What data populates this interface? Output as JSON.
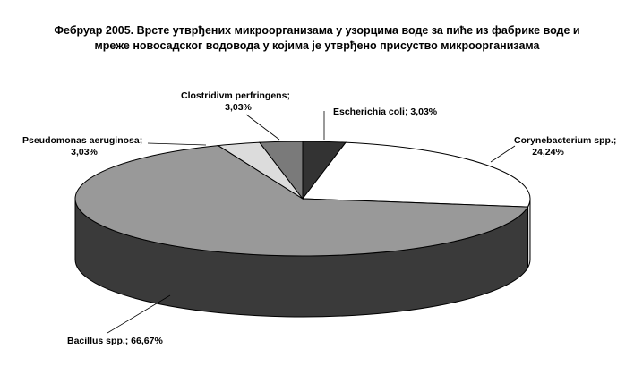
{
  "chart_data": {
    "type": "pie",
    "title": "Фебруар 2005. Врсте утврђених микроорганизама у узорцима воде за пиће из фабрике воде и мреже новосадског водовода у којима је утврђено присуство микроорганизама",
    "slices": [
      {
        "label": "Escherichia coli",
        "value": 3.03,
        "display": "Escherichia coli; 3,03%",
        "color": "#333333",
        "side": "#1f1f1f"
      },
      {
        "label": "Corynebacterium spp.",
        "value": 24.24,
        "display_line1": "Corynebacterium spp.;",
        "display_line2": "24,24%",
        "color": "#ffffff",
        "side": "#d9d9d9"
      },
      {
        "label": "Bacillus spp.",
        "value": 66.67,
        "display": "Bacillus spp.; 66,67%",
        "color": "#999999",
        "side": "#3a3a3a"
      },
      {
        "label": "Pseudomonas aeruginosa",
        "value": 3.03,
        "display_line1": "Pseudomonas aeruginosa;",
        "display_line2": "3,03%",
        "color": "#dcdcdc",
        "side": "#b0b0b0"
      },
      {
        "label": "Clostridium perfringens",
        "value": 3.03,
        "display_line1": "Clostridivm perfringens;",
        "display_line2": "3,03%",
        "color": "#7a7a7a",
        "side": "#555555"
      }
    ],
    "legend": "none"
  }
}
